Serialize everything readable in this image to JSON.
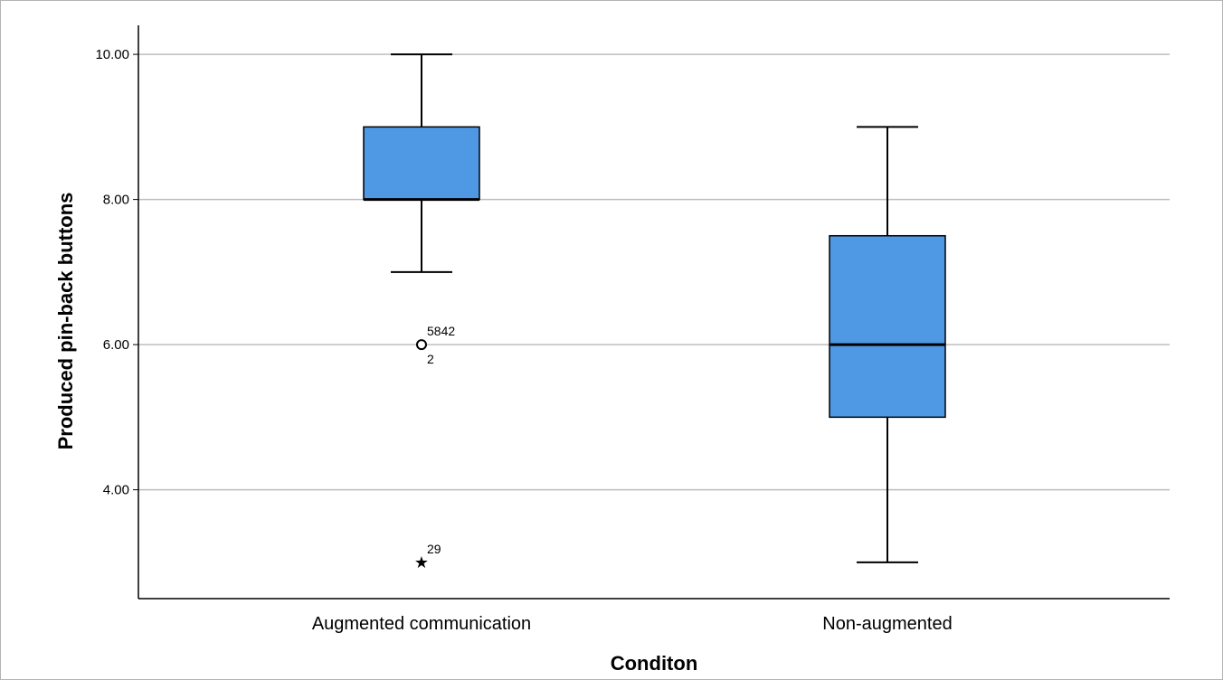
{
  "chart_data": {
    "type": "boxplot",
    "xlabel": "Conditon",
    "ylabel": "Produced pin-back buttons",
    "ylim": [
      2.5,
      10.4
    ],
    "yticks": [
      4,
      6,
      8,
      10
    ],
    "ytick_labels": [
      "4.00",
      "6.00",
      "8.00",
      "10.00"
    ],
    "grid": "horizontal",
    "box_color": "#4f98e3",
    "categories": [
      "Augmented communication",
      "Non-augmented"
    ],
    "boxes": [
      {
        "category": "Augmented communication",
        "whisker_low": 7,
        "q1": 8,
        "median": 8,
        "q3": 9,
        "whisker_high": 10,
        "outliers": [
          {
            "value": 6,
            "marker": "circle",
            "labels": [
              "5842",
              "2"
            ]
          },
          {
            "value": 3,
            "marker": "star",
            "labels": [
              "29"
            ]
          }
        ]
      },
      {
        "category": "Non-augmented",
        "whisker_low": 3,
        "q1": 5,
        "median": 6,
        "q3": 7.5,
        "whisker_high": 9,
        "outliers": []
      }
    ]
  }
}
